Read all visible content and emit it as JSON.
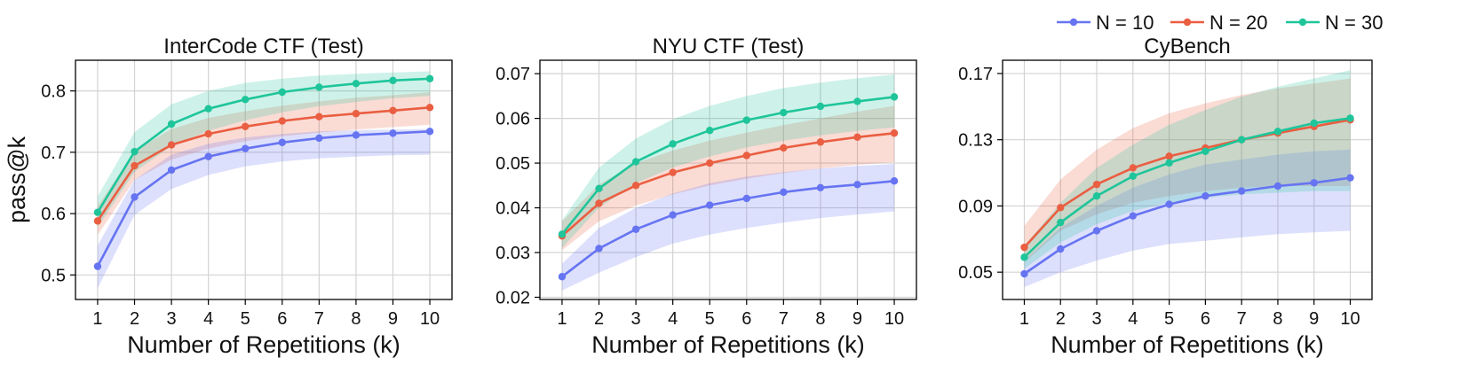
{
  "legend": {
    "placement": "top-right",
    "entries": [
      "N = 10",
      "N = 20",
      "N = 30"
    ]
  },
  "colors": {
    "N = 10": "#6674f2",
    "N = 20": "#ea5e41",
    "N = 30": "#1fc59a"
  },
  "chart_data": [
    {
      "type": "line",
      "title": "InterCode CTF (Test)",
      "xlabel": "Number of Repetitions (k)",
      "ylabel": "pass@k",
      "x": [
        1,
        2,
        3,
        4,
        5,
        6,
        7,
        8,
        9,
        10
      ],
      "xlim": [
        0.4,
        10.6
      ],
      "ylim": [
        0.46,
        0.85
      ],
      "yticks": [
        0.5,
        0.6,
        0.7,
        0.8
      ],
      "ytick_labels": [
        "0.5",
        "0.6",
        "0.7",
        "0.8"
      ],
      "grid": true,
      "series": [
        {
          "name": "N = 10",
          "values": [
            0.514,
            0.627,
            0.671,
            0.693,
            0.706,
            0.716,
            0.723,
            0.728,
            0.731,
            0.734
          ],
          "lower": [
            0.478,
            0.598,
            0.64,
            0.663,
            0.677,
            0.685,
            0.69,
            0.693,
            0.695,
            0.696
          ],
          "upper": [
            0.548,
            0.655,
            0.696,
            0.714,
            0.724,
            0.73,
            0.734,
            0.736,
            0.737,
            0.738
          ]
        },
        {
          "name": "N = 20",
          "values": [
            0.588,
            0.678,
            0.712,
            0.73,
            0.742,
            0.751,
            0.758,
            0.763,
            0.768,
            0.773
          ],
          "lower": [
            0.565,
            0.655,
            0.688,
            0.706,
            0.718,
            0.726,
            0.732,
            0.737,
            0.741,
            0.745
          ],
          "upper": [
            0.612,
            0.702,
            0.738,
            0.756,
            0.767,
            0.776,
            0.783,
            0.789,
            0.793,
            0.798
          ]
        },
        {
          "name": "N = 30",
          "values": [
            0.602,
            0.701,
            0.746,
            0.771,
            0.786,
            0.798,
            0.806,
            0.812,
            0.817,
            0.82
          ],
          "lower": [
            0.578,
            0.668,
            0.71,
            0.735,
            0.752,
            0.765,
            0.775,
            0.782,
            0.788,
            0.792
          ],
          "upper": [
            0.628,
            0.733,
            0.778,
            0.8,
            0.813,
            0.82,
            0.825,
            0.828,
            0.83,
            0.832
          ]
        }
      ]
    },
    {
      "type": "line",
      "title": "NYU CTF (Test)",
      "xlabel": "Number of Repetitions (k)",
      "ylabel": "",
      "x": [
        1,
        2,
        3,
        4,
        5,
        6,
        7,
        8,
        9,
        10
      ],
      "xlim": [
        0.4,
        10.6
      ],
      "ylim": [
        0.0195,
        0.073
      ],
      "yticks": [
        0.02,
        0.03,
        0.04,
        0.05,
        0.06,
        0.07
      ],
      "ytick_labels": [
        "0.02",
        "0.03",
        "0.04",
        "0.05",
        "0.06",
        "0.07"
      ],
      "grid": true,
      "series": [
        {
          "name": "N = 10",
          "values": [
            0.0246,
            0.0309,
            0.0352,
            0.0384,
            0.0406,
            0.0421,
            0.0435,
            0.0445,
            0.0452,
            0.046
          ],
          "lower": [
            0.0215,
            0.0255,
            0.029,
            0.032,
            0.034,
            0.0355,
            0.0367,
            0.0377,
            0.0385,
            0.0392
          ],
          "upper": [
            0.0275,
            0.0355,
            0.04,
            0.0432,
            0.0455,
            0.047,
            0.048,
            0.0488,
            0.0494,
            0.0498
          ]
        },
        {
          "name": "N = 20",
          "values": [
            0.0337,
            0.041,
            0.045,
            0.0479,
            0.05,
            0.0517,
            0.0534,
            0.0547,
            0.0558,
            0.0567
          ],
          "lower": [
            0.0305,
            0.037,
            0.0405,
            0.043,
            0.045,
            0.0465,
            0.0478,
            0.0488,
            0.0496,
            0.0502
          ],
          "upper": [
            0.037,
            0.0452,
            0.05,
            0.0528,
            0.055,
            0.0568,
            0.0585,
            0.06,
            0.0615,
            0.0628
          ]
        },
        {
          "name": "N = 30",
          "values": [
            0.0341,
            0.0443,
            0.0503,
            0.0543,
            0.0573,
            0.0596,
            0.0613,
            0.0627,
            0.0638,
            0.0648
          ],
          "lower": [
            0.031,
            0.04,
            0.0455,
            0.049,
            0.0515,
            0.0535,
            0.055,
            0.0562,
            0.0572,
            0.058
          ],
          "upper": [
            0.0372,
            0.049,
            0.0555,
            0.0598,
            0.0628,
            0.065,
            0.0668,
            0.068,
            0.069,
            0.0698
          ]
        }
      ]
    },
    {
      "type": "line",
      "title": "CyBench",
      "xlabel": "Number of Repetitions (k)",
      "ylabel": "",
      "x": [
        1,
        2,
        3,
        4,
        5,
        6,
        7,
        8,
        9,
        10
      ],
      "xlim": [
        0.4,
        10.6
      ],
      "ylim": [
        0.0335,
        0.178
      ],
      "yticks": [
        0.05,
        0.09,
        0.13,
        0.17
      ],
      "ytick_labels": [
        "0.05",
        "0.09",
        "0.13",
        "0.17"
      ],
      "grid": true,
      "series": [
        {
          "name": "N = 10",
          "values": [
            0.049,
            0.064,
            0.075,
            0.084,
            0.091,
            0.096,
            0.099,
            0.102,
            0.104,
            0.107
          ],
          "lower": [
            0.041,
            0.05,
            0.057,
            0.063,
            0.067,
            0.069,
            0.071,
            0.073,
            0.074,
            0.075
          ],
          "upper": [
            0.057,
            0.077,
            0.09,
            0.101,
            0.109,
            0.115,
            0.118,
            0.121,
            0.123,
            0.124
          ]
        },
        {
          "name": "N = 20",
          "values": [
            0.065,
            0.089,
            0.103,
            0.113,
            0.12,
            0.125,
            0.13,
            0.134,
            0.138,
            0.142
          ],
          "lower": [
            0.056,
            0.075,
            0.085,
            0.092,
            0.096,
            0.099,
            0.101,
            0.102,
            0.102,
            0.102
          ],
          "upper": [
            0.078,
            0.106,
            0.124,
            0.137,
            0.146,
            0.152,
            0.157,
            0.161,
            0.164,
            0.167
          ]
        },
        {
          "name": "N = 30",
          "values": [
            0.059,
            0.08,
            0.096,
            0.108,
            0.116,
            0.123,
            0.13,
            0.135,
            0.14,
            0.143
          ],
          "lower": [
            0.052,
            0.068,
            0.079,
            0.087,
            0.092,
            0.095,
            0.097,
            0.098,
            0.099,
            0.099
          ],
          "upper": [
            0.066,
            0.092,
            0.113,
            0.127,
            0.139,
            0.148,
            0.156,
            0.162,
            0.167,
            0.172
          ]
        }
      ]
    }
  ]
}
